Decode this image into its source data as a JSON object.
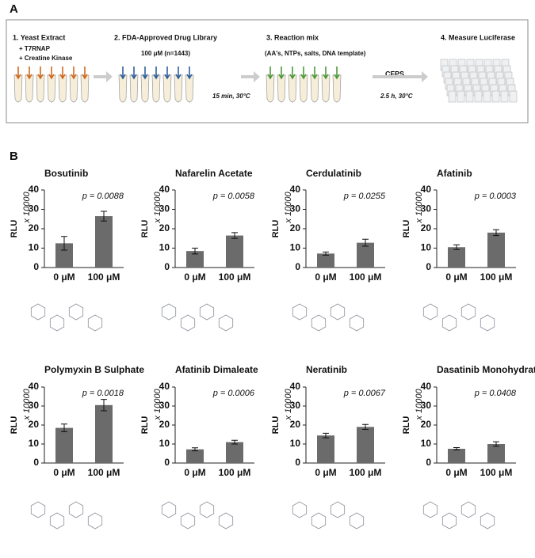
{
  "panel_a": {
    "label": "A",
    "step1": "1. Yeast Extract",
    "step1_add1": "+ T7RNAP",
    "step1_add2": "+ Creatine Kinase",
    "step2": "2. FDA-Approved Drug Library",
    "step2_sub": "100 μM (n=1443)",
    "incubation1": "15 min, 30°C",
    "step3": "3. Reaction mix",
    "step3_sub": "(AA's, NTPs, salts, DNA template)",
    "cfps": "CFPS",
    "incubation2": "2.5 h, 30°C",
    "step4": "4. Measure Luciferase"
  },
  "panel_b": {
    "label": "B"
  },
  "chart_data": [
    {
      "type": "bar",
      "title": "Bosutinib",
      "annotation": "p = 0.0088",
      "y_label": "RLU",
      "y_scale": "x 10000",
      "categories": [
        "0 μM",
        "100 μM"
      ],
      "values": [
        12.5,
        26.5
      ],
      "errors": [
        3.5,
        2.5
      ],
      "color": "#6b6b6b",
      "ylim": [
        0,
        40
      ],
      "yticks": [
        0,
        10,
        20,
        30,
        40
      ]
    },
    {
      "type": "bar",
      "title": "Nafarelin Acetate",
      "annotation": "p = 0.0058",
      "y_label": "RLU",
      "y_scale": "x 10000",
      "categories": [
        "0 μM",
        "100 μM"
      ],
      "values": [
        8.5,
        16.5
      ],
      "errors": [
        1.5,
        1.5
      ],
      "color": "#6b6b6b",
      "ylim": [
        0,
        40
      ],
      "yticks": [
        0,
        10,
        20,
        30,
        40
      ]
    },
    {
      "type": "bar",
      "title": "Cerdulatinib",
      "annotation": "p = 0.0255",
      "y_label": "RLU",
      "y_scale": "x 10000",
      "categories": [
        "0 μM",
        "100 μM"
      ],
      "values": [
        7.2,
        12.8
      ],
      "errors": [
        0.8,
        1.8
      ],
      "color": "#6b6b6b",
      "ylim": [
        0,
        40
      ],
      "yticks": [
        0,
        10,
        20,
        30,
        40
      ]
    },
    {
      "type": "bar",
      "title": "Afatinib",
      "annotation": "p = 0.0003",
      "y_label": "RLU",
      "y_scale": "x 10000",
      "categories": [
        "0 μM",
        "100 μM"
      ],
      "values": [
        10.5,
        18
      ],
      "errors": [
        1.2,
        1.5
      ],
      "color": "#6b6b6b",
      "ylim": [
        0,
        40
      ],
      "yticks": [
        0,
        10,
        20,
        30,
        40
      ]
    },
    {
      "type": "bar",
      "title": "Polymyxin B Sulphate",
      "annotation": "p = 0.0018",
      "y_label": "RLU",
      "y_scale": "x 10000",
      "categories": [
        "0 μM",
        "100 μM"
      ],
      "values": [
        18.5,
        30.5
      ],
      "errors": [
        2,
        3
      ],
      "color": "#6b6b6b",
      "ylim": [
        0,
        40
      ],
      "yticks": [
        0,
        10,
        20,
        30,
        40
      ]
    },
    {
      "type": "bar",
      "title": "Afatinib Dimaleate",
      "annotation": "p = 0.0006",
      "y_label": "RLU",
      "y_scale": "x 10000",
      "categories": [
        "0 μM",
        "100 μM"
      ],
      "values": [
        7.2,
        11
      ],
      "errors": [
        0.8,
        1
      ],
      "color": "#6b6b6b",
      "ylim": [
        0,
        40
      ],
      "yticks": [
        0,
        10,
        20,
        30,
        40
      ]
    },
    {
      "type": "bar",
      "title": "Neratinib",
      "annotation": "p = 0.0067",
      "y_label": "RLU",
      "y_scale": "x 10000",
      "categories": [
        "0 μM",
        "100 μM"
      ],
      "values": [
        14.5,
        19
      ],
      "errors": [
        1.2,
        1.3
      ],
      "color": "#6b6b6b",
      "ylim": [
        0,
        40
      ],
      "yticks": [
        0,
        10,
        20,
        30,
        40
      ]
    },
    {
      "type": "bar",
      "title": "Dasatinib Monohydrate",
      "annotation": "p = 0.0408",
      "y_label": "RLU",
      "y_scale": "x 10000",
      "categories": [
        "0 μM",
        "100 μM"
      ],
      "values": [
        7.5,
        10
      ],
      "errors": [
        0.6,
        1.2
      ],
      "color": "#6b6b6b",
      "ylim": [
        0,
        40
      ],
      "yticks": [
        0,
        10,
        20,
        30,
        40
      ]
    }
  ]
}
